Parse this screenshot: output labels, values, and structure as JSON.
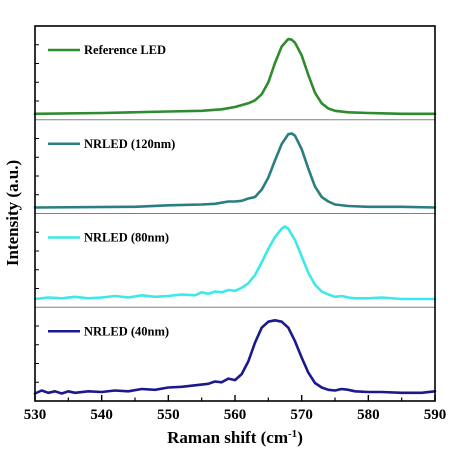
{
  "chart_data": {
    "type": "line",
    "xlabel": "Raman shift (cm",
    "xlabel_sup": "-1",
    "xlabel_end": ")",
    "ylabel": "Intensity (a.u.)",
    "xlim": [
      530,
      590
    ],
    "xticks": [
      "530",
      "540",
      "550",
      "560",
      "570",
      "580",
      "590"
    ],
    "panels_stacked": true,
    "series": [
      {
        "name": "Reference LED",
        "color": "#2e8b2e",
        "x": [
          530,
          540,
          550,
          555,
          558,
          560,
          562,
          563,
          564,
          565,
          566,
          567,
          568,
          568.5,
          569,
          570,
          571,
          572,
          573,
          574,
          575,
          577,
          580,
          585,
          590
        ],
        "y": [
          0,
          0.01,
          0.03,
          0.04,
          0.06,
          0.09,
          0.14,
          0.18,
          0.26,
          0.42,
          0.68,
          0.9,
          1.0,
          0.99,
          0.95,
          0.78,
          0.52,
          0.28,
          0.14,
          0.07,
          0.04,
          0.02,
          0.01,
          0,
          0
        ]
      },
      {
        "name": "NRLED (120nm)",
        "color": "#2a7d80",
        "x": [
          530,
          545,
          550,
          555,
          557,
          559,
          560,
          561,
          562,
          563,
          564,
          565,
          566,
          567,
          568,
          568.5,
          569,
          570,
          571,
          572,
          573,
          574,
          575,
          577,
          580,
          585,
          590
        ],
        "y": [
          0,
          0.01,
          0.03,
          0.04,
          0.05,
          0.08,
          0.08,
          0.09,
          0.12,
          0.14,
          0.24,
          0.4,
          0.63,
          0.85,
          0.98,
          0.99,
          0.96,
          0.78,
          0.52,
          0.28,
          0.14,
          0.08,
          0.04,
          0.02,
          0.01,
          0.01,
          0
        ]
      },
      {
        "name": "NRLED (80nm)",
        "color": "#3de8e8",
        "x": [
          530,
          532,
          534,
          536,
          538,
          540,
          542,
          544,
          546,
          548,
          550,
          552,
          554,
          555,
          556,
          557,
          558,
          559,
          560,
          561,
          562,
          563,
          564,
          565,
          566,
          567,
          567.5,
          568,
          569,
          570,
          571,
          572,
          573,
          574,
          575,
          576,
          577,
          578,
          580,
          582,
          585,
          588,
          590
        ],
        "y": [
          0.03,
          0.05,
          0.04,
          0.06,
          0.04,
          0.05,
          0.07,
          0.05,
          0.08,
          0.06,
          0.07,
          0.09,
          0.08,
          0.12,
          0.1,
          0.13,
          0.12,
          0.15,
          0.14,
          0.18,
          0.24,
          0.35,
          0.52,
          0.7,
          0.86,
          0.97,
          1.0,
          0.97,
          0.82,
          0.6,
          0.38,
          0.22,
          0.13,
          0.09,
          0.06,
          0.07,
          0.05,
          0.04,
          0.04,
          0.05,
          0.03,
          0.03,
          0.03
        ]
      },
      {
        "name": "NRLED (40nm)",
        "color": "#1a1a8c",
        "x": [
          530,
          531,
          532,
          533,
          534,
          535,
          536,
          538,
          540,
          542,
          544,
          546,
          548,
          550,
          552,
          554,
          556,
          557,
          558,
          559,
          560,
          561,
          562,
          563,
          564,
          565,
          566,
          567,
          568,
          569,
          570,
          571,
          572,
          573,
          574,
          575,
          576,
          577,
          578,
          580,
          582,
          585,
          588,
          590
        ],
        "y": [
          0.02,
          0.06,
          0.03,
          0.05,
          0.02,
          0.05,
          0.03,
          0.05,
          0.04,
          0.06,
          0.05,
          0.08,
          0.07,
          0.1,
          0.11,
          0.13,
          0.15,
          0.18,
          0.17,
          0.22,
          0.2,
          0.28,
          0.45,
          0.7,
          0.9,
          0.98,
          1.0,
          0.98,
          0.9,
          0.72,
          0.5,
          0.3,
          0.16,
          0.1,
          0.07,
          0.06,
          0.08,
          0.07,
          0.05,
          0.04,
          0.04,
          0.03,
          0.03,
          0.05
        ]
      }
    ]
  }
}
